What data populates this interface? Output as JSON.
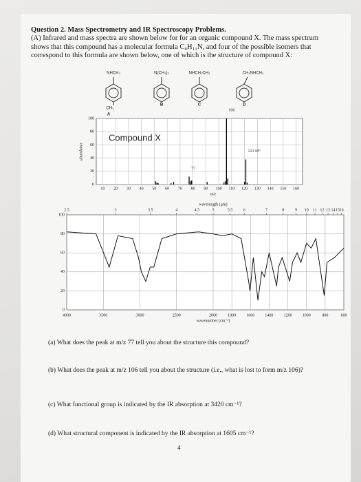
{
  "header": {
    "title": "Question 2. Mass Spectrometry and IR Spectroscopy Problems.",
    "intro": "(A) Infrared and mass spectra are shown below for for an organic compound X. The mass spectrum shows that this compound has a molecular formula C₈H₁₁N, and four of the possible isomers that correspond to this formula are shown below, one of which is the structure of compound X:"
  },
  "isomers": [
    {
      "group": "NHCH₃",
      "para_group": "CH₃",
      "label": "A"
    },
    {
      "group": "N(CH₃)₂",
      "label": "B"
    },
    {
      "group": "NHCH₂CH₃",
      "label": "C"
    },
    {
      "group": "CH₂NHCH₃",
      "label": "D"
    }
  ],
  "mass_spectrum": {
    "type": "bar",
    "title": "Compound X",
    "x_label": "m/z",
    "y_label": "abundance",
    "x": [
      51,
      52,
      53,
      63,
      65,
      77,
      78,
      79,
      91,
      104,
      105,
      106,
      107,
      120,
      121,
      122
    ],
    "values": [
      5,
      3,
      2,
      2,
      4,
      12,
      5,
      6,
      4,
      3,
      5,
      100,
      9,
      4,
      38,
      3
    ],
    "annotations": [
      "106",
      "121 M⁺",
      "77"
    ],
    "xlim": [
      5,
      165
    ],
    "xticks": [
      10,
      20,
      30,
      40,
      50,
      60,
      70,
      80,
      90,
      100,
      110,
      120,
      130,
      140,
      150,
      160
    ],
    "ylim": [
      0,
      100
    ],
    "yticks": [
      0,
      20,
      40,
      60,
      80,
      100
    ],
    "grid": true
  },
  "ir_spectrum": {
    "type": "line",
    "x_label": "wavenumber (cm⁻¹)",
    "top_label": "wavelength (µm)",
    "x": [
      4000,
      3600,
      3420,
      3300,
      3100,
      3020,
      2980,
      2920,
      2860,
      2810,
      2700,
      2500,
      2200,
      2000,
      1900,
      1800,
      1700,
      1620,
      1605,
      1570,
      1520,
      1480,
      1450,
      1400,
      1320,
      1300,
      1260,
      1180,
      1150,
      1100,
      1060,
      1000,
      950,
      900,
      810,
      780,
      700,
      650,
      600
    ],
    "values": [
      82,
      80,
      45,
      78,
      75,
      55,
      40,
      30,
      45,
      45,
      75,
      80,
      82,
      80,
      78,
      80,
      75,
      30,
      20,
      55,
      10,
      40,
      35,
      60,
      25,
      45,
      55,
      30,
      50,
      60,
      50,
      70,
      65,
      75,
      15,
      50,
      55,
      60,
      65
    ],
    "xlim": [
      4000,
      600
    ],
    "xticks": [
      4000,
      3500,
      3000,
      2500,
      2000,
      1800,
      1600,
      1400,
      1200,
      1000,
      800,
      600
    ],
    "wavelength_ticks": [
      2.5,
      3,
      3.5,
      4,
      4.5,
      5,
      5.5,
      6,
      7,
      8,
      9,
      10,
      11,
      12,
      13,
      14,
      15,
      16
    ],
    "ylim": [
      0,
      100
    ],
    "yticks": [
      0,
      20,
      40,
      60,
      80,
      100
    ],
    "grid": true
  },
  "questions": [
    "(a) What does the peak at m/z 77 tell you about the structure this compound?",
    "(b) What does the peak at m/z 106 tell you about the structure (i.e., what is lost to form m/z 106)?",
    "(c) What functional group is indicated by the IR absorption at 3420 cm⁻¹?",
    "(d) What structural component is indicated by the IR absorption at 1605 cm⁻¹?"
  ],
  "page_number": "4"
}
